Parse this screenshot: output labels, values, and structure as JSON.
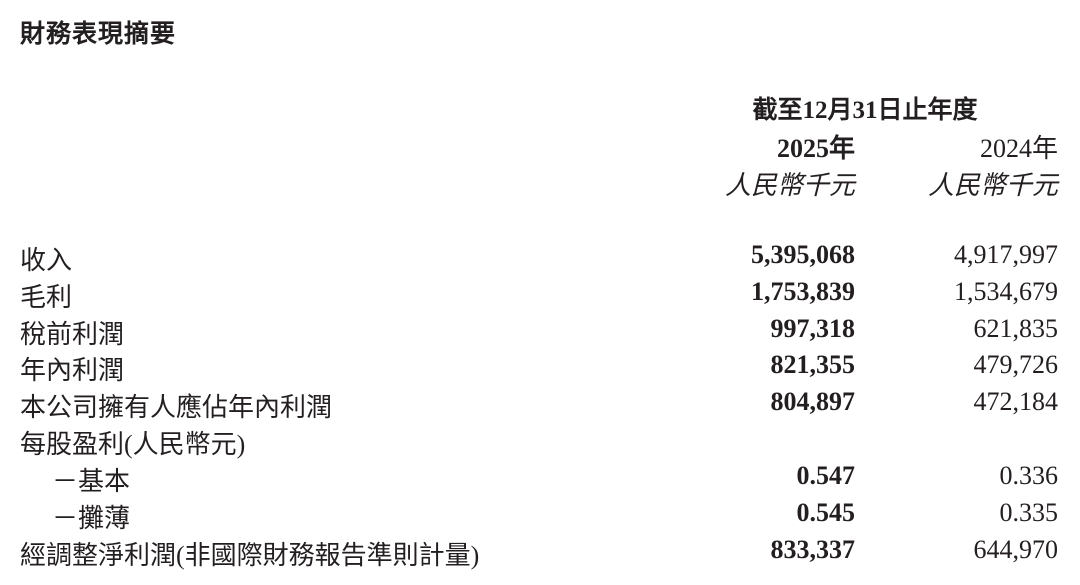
{
  "title": "財務表現摘要",
  "header": {
    "period": "截至12月31日止年度",
    "columns": [
      {
        "year": "2025年",
        "unit": "人民幣千元"
      },
      {
        "year": "2024年",
        "unit": "人民幣千元"
      }
    ]
  },
  "rows": [
    {
      "label": "收入",
      "v2025": "5,395,068",
      "v2024": "4,917,997"
    },
    {
      "label": "毛利",
      "v2025": "1,753,839",
      "v2024": "1,534,679"
    },
    {
      "label": "稅前利潤",
      "v2025": "997,318",
      "v2024": "621,835"
    },
    {
      "label": "年內利潤",
      "v2025": "821,355",
      "v2024": "479,726"
    },
    {
      "label": "本公司擁有人應佔年內利潤",
      "v2025": "804,897",
      "v2024": "472,184"
    },
    {
      "label": "每股盈利(人民幣元)",
      "v2025": "",
      "v2024": ""
    },
    {
      "label": "－基本",
      "v2025": "0.547",
      "v2024": "0.336"
    },
    {
      "label": "－攤薄",
      "v2025": "0.545",
      "v2024": "0.335"
    },
    {
      "label": "經調整淨利潤(非國際財務報告準則計量)",
      "v2025": "833,337",
      "v2024": "644,970"
    }
  ]
}
